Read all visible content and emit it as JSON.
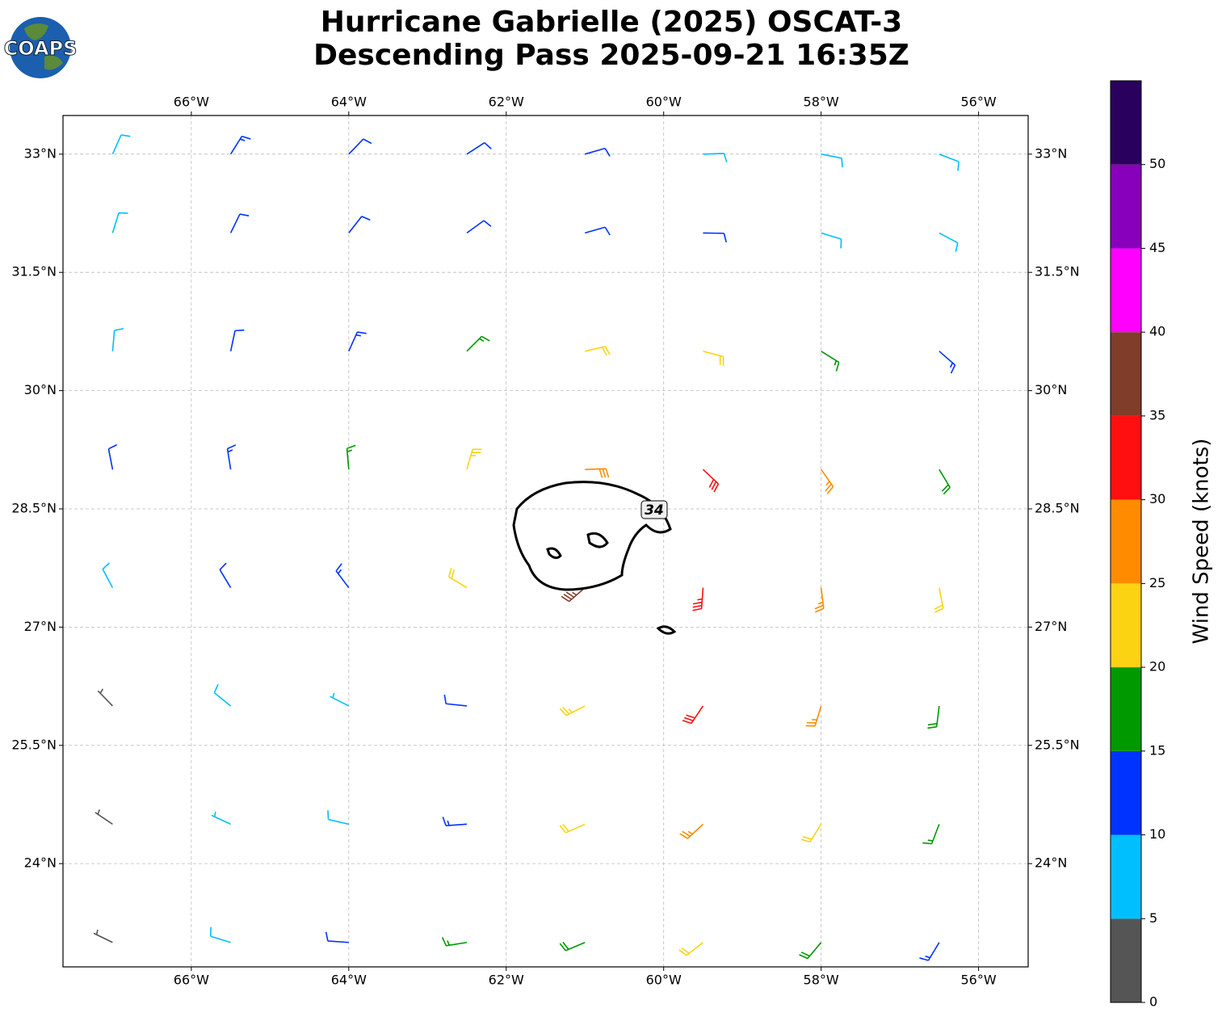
{
  "logo": "COAPS",
  "chart_data": {
    "type": "barbs",
    "title": [
      "Hurricane Gabrielle (2025) OSCAT-3",
      "Descending Pass 2025-09-21 16:35Z"
    ],
    "xlim": [
      -67.63,
      -55.37
    ],
    "ylim": [
      22.69,
      33.49
    ],
    "xticks": [
      {
        "value": -66,
        "label": "66°W"
      },
      {
        "value": -64,
        "label": "64°W"
      },
      {
        "value": -62,
        "label": "62°W"
      },
      {
        "value": -60,
        "label": "60°W"
      },
      {
        "value": -58,
        "label": "58°W"
      },
      {
        "value": -56,
        "label": "56°W"
      }
    ],
    "yticks": [
      {
        "value": 24,
        "label": "24°N"
      },
      {
        "value": 25.5,
        "label": "25.5°N"
      },
      {
        "value": 27,
        "label": "27°N"
      },
      {
        "value": 28.5,
        "label": "28.5°N"
      },
      {
        "value": 30,
        "label": "30°N"
      },
      {
        "value": 31.5,
        "label": "31.5°N"
      },
      {
        "value": 33,
        "label": "33°N"
      }
    ],
    "grid": true,
    "contour_label": "34",
    "barbs": {
      "lon": [
        -67,
        -65.5,
        -64,
        -62.5,
        -61,
        -59.5,
        -58,
        -56.5,
        -67,
        -65.5,
        -64,
        -62.5,
        -61,
        -59.5,
        -58,
        -56.5,
        -67,
        -65.5,
        -64,
        -62.5,
        -61,
        -59.5,
        -58,
        -56.5,
        -67,
        -65.5,
        -64,
        -62.5,
        -61,
        -59.5,
        -58,
        -56.5,
        -67,
        -65.5,
        -64,
        -62.5,
        -61,
        -59.5,
        -58,
        -56.5,
        -67,
        -65.5,
        -64,
        -62.5,
        -61,
        -59.5,
        -58,
        -56.5,
        -67,
        -65.5,
        -64,
        -62.5,
        -61,
        -59.5,
        -58,
        -56.5,
        -67,
        -65.5,
        -64,
        -62.5,
        -61,
        -59.5,
        -58,
        -56.5
      ],
      "lat": [
        33,
        33,
        33,
        33,
        33,
        33,
        33,
        33,
        32,
        32,
        32,
        32,
        32,
        32,
        32,
        32,
        30.5,
        30.5,
        30.5,
        30.5,
        30.5,
        30.5,
        30.5,
        30.5,
        29,
        29,
        29,
        29,
        29,
        29,
        29,
        29,
        27.5,
        27.5,
        27.5,
        27.5,
        27.5,
        27.5,
        27.5,
        27.5,
        26,
        26,
        26,
        26,
        26,
        26,
        26,
        26,
        24.5,
        24.5,
        24.5,
        24.5,
        24.5,
        24.5,
        24.5,
        24.5,
        23,
        23,
        23,
        23,
        23,
        23,
        23,
        23
      ],
      "speed": [
        8,
        14,
        12,
        12,
        12,
        9,
        9,
        9,
        8,
        12,
        12,
        12,
        12,
        11,
        9,
        9,
        9,
        12,
        13,
        17,
        22,
        22,
        17,
        13,
        12,
        13,
        17,
        23,
        28,
        32,
        27,
        18,
        9,
        12,
        13,
        22,
        37,
        33,
        27,
        22,
        4,
        8,
        7,
        12,
        23,
        32,
        27,
        18,
        3,
        7,
        8,
        13,
        22,
        27,
        22,
        17,
        3,
        8,
        12,
        17,
        18,
        22,
        18,
        13
      ],
      "direction": [
        24,
        32,
        44,
        57,
        74,
        88,
        101,
        111,
        17,
        26,
        38,
        54,
        74,
        91,
        107,
        118,
        5,
        12,
        24,
        45,
        77,
        105,
        122,
        131,
        349,
        351,
        355,
        16,
        88,
        133,
        145,
        149,
        332,
        329,
        323,
        301,
        229,
        184,
        173,
        169,
        316,
        309,
        297,
        276,
        243,
        214,
        197,
        187,
        304,
        295,
        283,
        266,
        246,
        227,
        212,
        201,
        296,
        287,
        274,
        261,
        247,
        232,
        220,
        211
      ]
    },
    "colorbar": {
      "label": "Wind Speed (knots)",
      "bounds": [
        0,
        5,
        10,
        15,
        20,
        25,
        30,
        35,
        40,
        45,
        50,
        55
      ],
      "colors": [
        "#555555",
        "#00bfff",
        "#0033ff",
        "#009900",
        "#fcd313",
        "#ff8c00",
        "#ff0f0f",
        "#7f3d2a",
        "#ff00ff",
        "#8800bb",
        "#2a005e"
      ],
      "ticks": [
        0,
        5,
        10,
        15,
        20,
        25,
        30,
        35,
        40,
        45,
        50
      ]
    }
  }
}
